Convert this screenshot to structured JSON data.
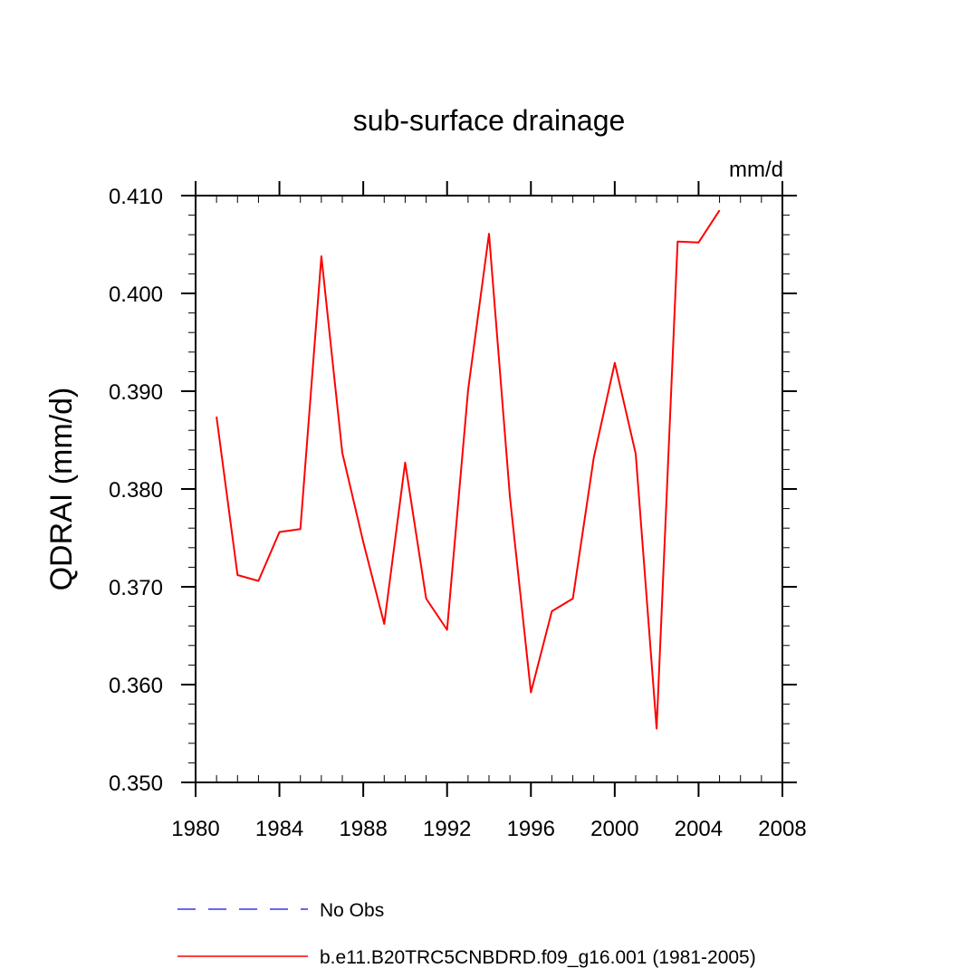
{
  "chart_data": {
    "type": "line",
    "title": "sub-surface drainage",
    "units_label": "mm/d",
    "xlabel": "",
    "ylabel": "QDRAI  (mm/d)",
    "xlim": [
      1980,
      2008
    ],
    "ylim": [
      0.35,
      0.41
    ],
    "x_ticks": [
      1980,
      1984,
      1988,
      1992,
      1996,
      2000,
      2004,
      2008
    ],
    "x_tick_labels": [
      "1980",
      "1984",
      "1988",
      "1992",
      "1996",
      "2000",
      "2004",
      "2008"
    ],
    "y_ticks": [
      0.35,
      0.36,
      0.37,
      0.38,
      0.39,
      0.4,
      0.41
    ],
    "y_tick_labels": [
      "0.350",
      "0.360",
      "0.370",
      "0.380",
      "0.390",
      "0.400",
      "0.410"
    ],
    "x_minor_step": 1,
    "y_minor_step": 0.002,
    "grid": false,
    "legend_position": "bottom",
    "series": [
      {
        "name": "No Obs",
        "color": "#3333ff",
        "dash": "dashed",
        "x": [],
        "values": []
      },
      {
        "name": "b.e11.B20TRC5CNBDRD.f09_g16.001 (1981-2005)",
        "color": "#ff0000",
        "dash": "solid",
        "x": [
          1981,
          1982,
          1983,
          1984,
          1985,
          1986,
          1987,
          1988,
          1989,
          1990,
          1991,
          1992,
          1993,
          1994,
          1995,
          1996,
          1997,
          1998,
          1999,
          2000,
          2001,
          2002,
          2003,
          2004,
          2005
        ],
        "values": [
          0.3874,
          0.3712,
          0.3706,
          0.3756,
          0.3759,
          0.4038,
          0.3837,
          0.3746,
          0.3662,
          0.3827,
          0.3688,
          0.3656,
          0.3901,
          0.4061,
          0.3792,
          0.3592,
          0.3675,
          0.3688,
          0.3832,
          0.3929,
          0.3836,
          0.3555,
          0.4053,
          0.4052,
          0.4085
        ]
      }
    ]
  }
}
